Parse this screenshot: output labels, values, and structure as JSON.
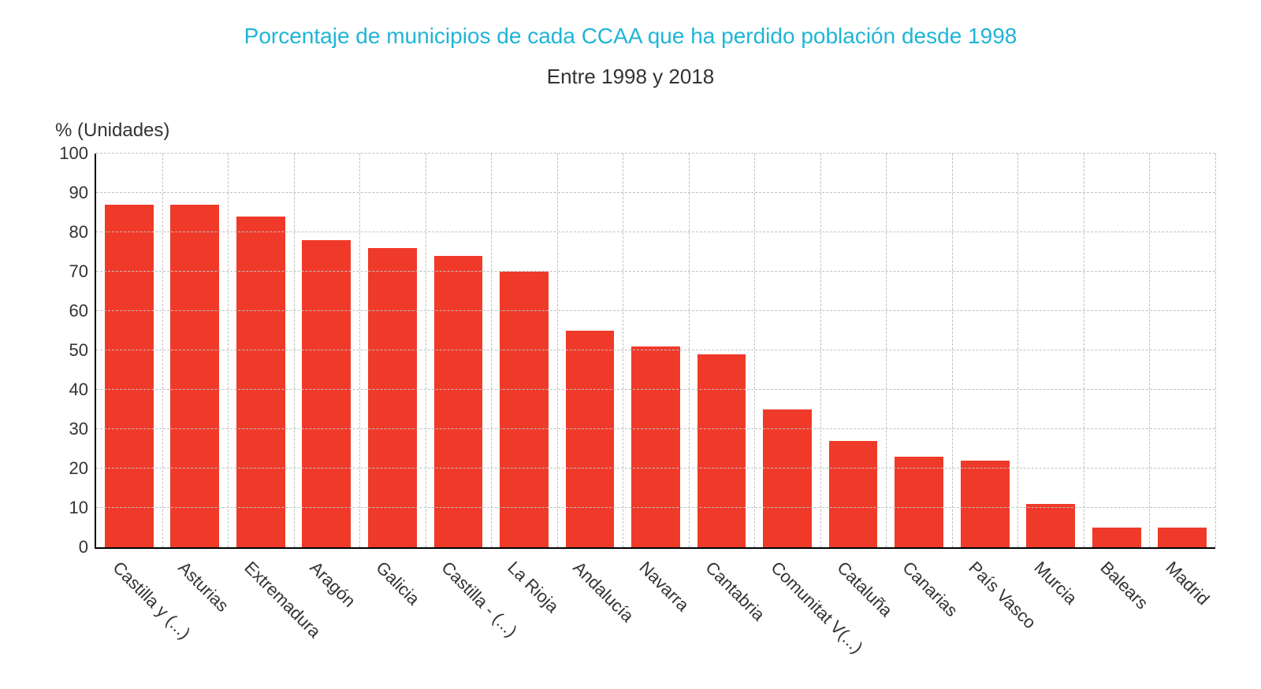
{
  "chart": {
    "type": "bar",
    "title": "Porcentaje de municipios de cada CCAA que ha perdido población desde 1998",
    "subtitle": "Entre 1998 y 2018",
    "ylabel": "% (Unidades)",
    "title_color": "#1fb5d6",
    "title_fontsize": 28,
    "subtitle_color": "#333333",
    "subtitle_fontsize": 26,
    "ylabel_color": "#333333",
    "ylabel_fontsize": 24,
    "tick_fontsize": 22,
    "xtick_fontsize": 22,
    "tick_color": "#333333",
    "background_color": "#ffffff",
    "grid_color": "#bfbfbf",
    "axis_color": "#000000",
    "ylim": [
      0,
      100
    ],
    "ytick_step": 10,
    "bar_width_ratio": 0.74,
    "bar_color": "#f03a29",
    "categories": [
      "Castilla y (...)",
      "Asturias",
      "Extremadura",
      "Aragón",
      "Galicia",
      "Castilla - (...)",
      "La Rioja",
      "Andalucía",
      "Navarra",
      "Cantabria",
      "Comunitat V(...)",
      "Cataluña",
      "Canarias",
      "País Vasco",
      "Murcia",
      "Balears",
      "Madrid"
    ],
    "values": [
      87,
      87,
      84,
      78,
      76,
      74,
      70,
      55,
      51,
      49,
      35,
      27,
      23,
      22,
      11,
      5,
      5
    ]
  }
}
